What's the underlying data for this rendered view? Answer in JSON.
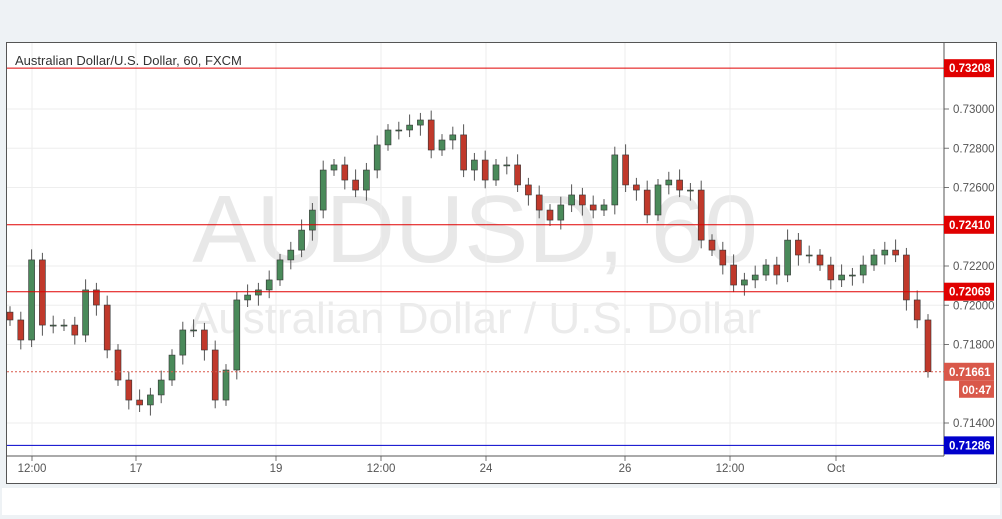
{
  "chart_data": {
    "type": "candlestick",
    "title": "Australian Dollar/U.S. Dollar, 60, FXCM",
    "watermark": {
      "symbol": "AUDUSD, 60",
      "description": "Australian Dollar / U.S. Dollar"
    },
    "x_tick_labels": [
      "12:00",
      "17",
      "19",
      "12:00",
      "24",
      "26",
      "12:00",
      "Oct"
    ],
    "y_tick_labels": [
      "0.73000",
      "0.72800",
      "0.72600",
      "0.72200",
      "0.72000",
      "0.71800",
      "0.71400"
    ],
    "ylim": [
      0.711,
      0.7335
    ],
    "grid": true,
    "closes": [
      0.71925,
      0.71823,
      0.72231,
      0.71899,
      0.71899,
      0.71899,
      0.71848,
      0.72078,
      0.72001,
      0.71772,
      0.71619,
      0.71517,
      0.71492,
      0.71543,
      0.71619,
      0.71746,
      0.71874,
      0.71874,
      0.71772,
      0.71517,
      0.7167,
      0.72027,
      0.72052,
      0.72078,
      0.72129,
      0.72231,
      0.72281,
      0.72383,
      0.72485,
      0.72689,
      0.72715,
      0.72638,
      0.72587,
      0.72689,
      0.72817,
      0.72893,
      0.72893,
      0.72918,
      0.72944,
      0.72791,
      0.72842,
      0.72868,
      0.72689,
      0.7274,
      0.72638,
      0.72715,
      0.72715,
      0.72613,
      0.72562,
      0.72485,
      0.72434,
      0.72511,
      0.72562,
      0.72511,
      0.72485,
      0.72511,
      0.72766,
      0.72613,
      0.72587,
      0.7246,
      0.72613,
      0.72638,
      0.72587,
      0.72587,
      0.72332,
      0.72281,
      0.72205,
      0.72103,
      0.72129,
      0.72154,
      0.72205,
      0.72154,
      0.72332,
      0.72256,
      0.72256,
      0.72205,
      0.72129,
      0.72154,
      0.72154,
      0.72205,
      0.72256,
      0.72281,
      0.72256,
      0.72027,
      0.71925,
      0.71661
    ],
    "horizontal_lines": [
      {
        "value": 0.73208,
        "label": "0.73208",
        "color": "#e00000"
      },
      {
        "value": 0.7241,
        "label": "0.72410",
        "color": "#e00000"
      },
      {
        "value": 0.72069,
        "label": "0.72069",
        "color": "#e00000"
      },
      {
        "value": 0.71286,
        "label": "0.71286",
        "color": "#0000cc"
      }
    ],
    "current_price": {
      "value": 0.71661,
      "label": "0.71661",
      "countdown": "00:47",
      "color": "#d9584a"
    },
    "colors": {
      "up": "#4a8a5a",
      "down": "#c0392b"
    }
  }
}
